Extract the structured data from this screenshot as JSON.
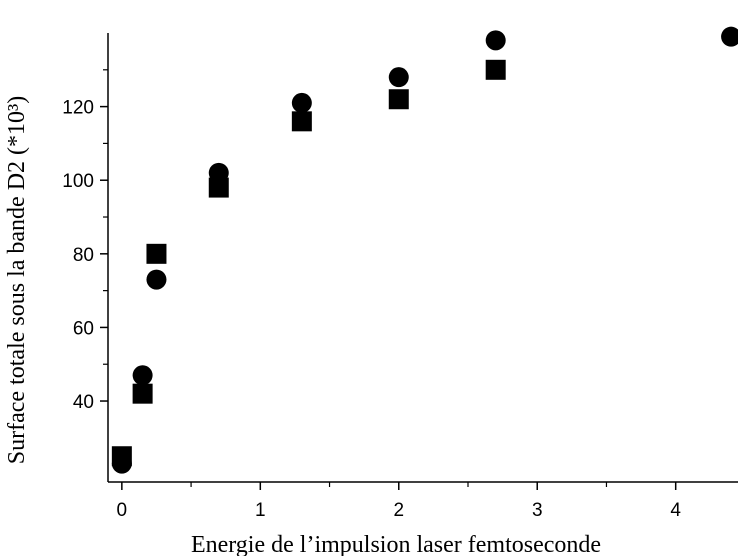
{
  "chart_data": {
    "type": "scatter",
    "title": "",
    "xlabel": "Energie de l’impulsion laser femtoseconde",
    "ylabel": "Surface totale sous la bande D2 (*10³)",
    "xlim": [
      -0.1,
      4.45
    ],
    "ylim": [
      18,
      140
    ],
    "x_ticks": [
      0,
      1,
      2,
      3,
      4
    ],
    "y_ticks": [
      40,
      60,
      80,
      100,
      120
    ],
    "grid": false,
    "legend": "none",
    "series": [
      {
        "marker": "circle",
        "color": "#000000",
        "points": [
          {
            "x": 0.0,
            "y": 23
          },
          {
            "x": 0.15,
            "y": 47
          },
          {
            "x": 0.25,
            "y": 73
          },
          {
            "x": 0.7,
            "y": 102
          },
          {
            "x": 1.3,
            "y": 121
          },
          {
            "x": 2.0,
            "y": 128
          },
          {
            "x": 2.7,
            "y": 138
          },
          {
            "x": 4.4,
            "y": 139
          }
        ]
      },
      {
        "marker": "square",
        "color": "#000000",
        "points": [
          {
            "x": 0.0,
            "y": 25
          },
          {
            "x": 0.15,
            "y": 42
          },
          {
            "x": 0.25,
            "y": 80
          },
          {
            "x": 0.7,
            "y": 98
          },
          {
            "x": 1.3,
            "y": 116
          },
          {
            "x": 2.0,
            "y": 122
          },
          {
            "x": 2.7,
            "y": 130
          }
        ]
      }
    ]
  }
}
